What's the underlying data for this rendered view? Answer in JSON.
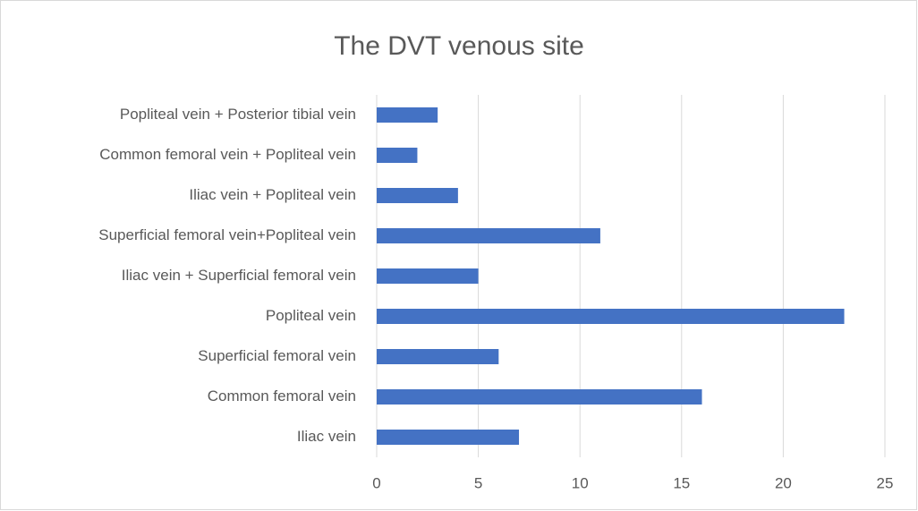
{
  "chart_data": {
    "type": "barh",
    "title": "The DVT venous site",
    "categories": [
      "Iliac vein",
      "Common femoral vein",
      "Superficial femoral vein",
      "Popliteal vein",
      "Iliac vein + Superficial femoral vein",
      "Superficial femoral vein+Popliteal vein",
      "Iliac vein + Popliteal vein",
      "Common femoral vein + Popliteal vein",
      "Popliteal vein + Posterior tibial vein"
    ],
    "values": [
      7,
      16,
      6,
      23,
      5,
      11,
      4,
      2,
      3
    ],
    "color": "#4472c4",
    "xlim": [
      0,
      25
    ],
    "xticks": [
      0,
      5,
      10,
      15,
      20,
      25
    ],
    "grid": true
  }
}
